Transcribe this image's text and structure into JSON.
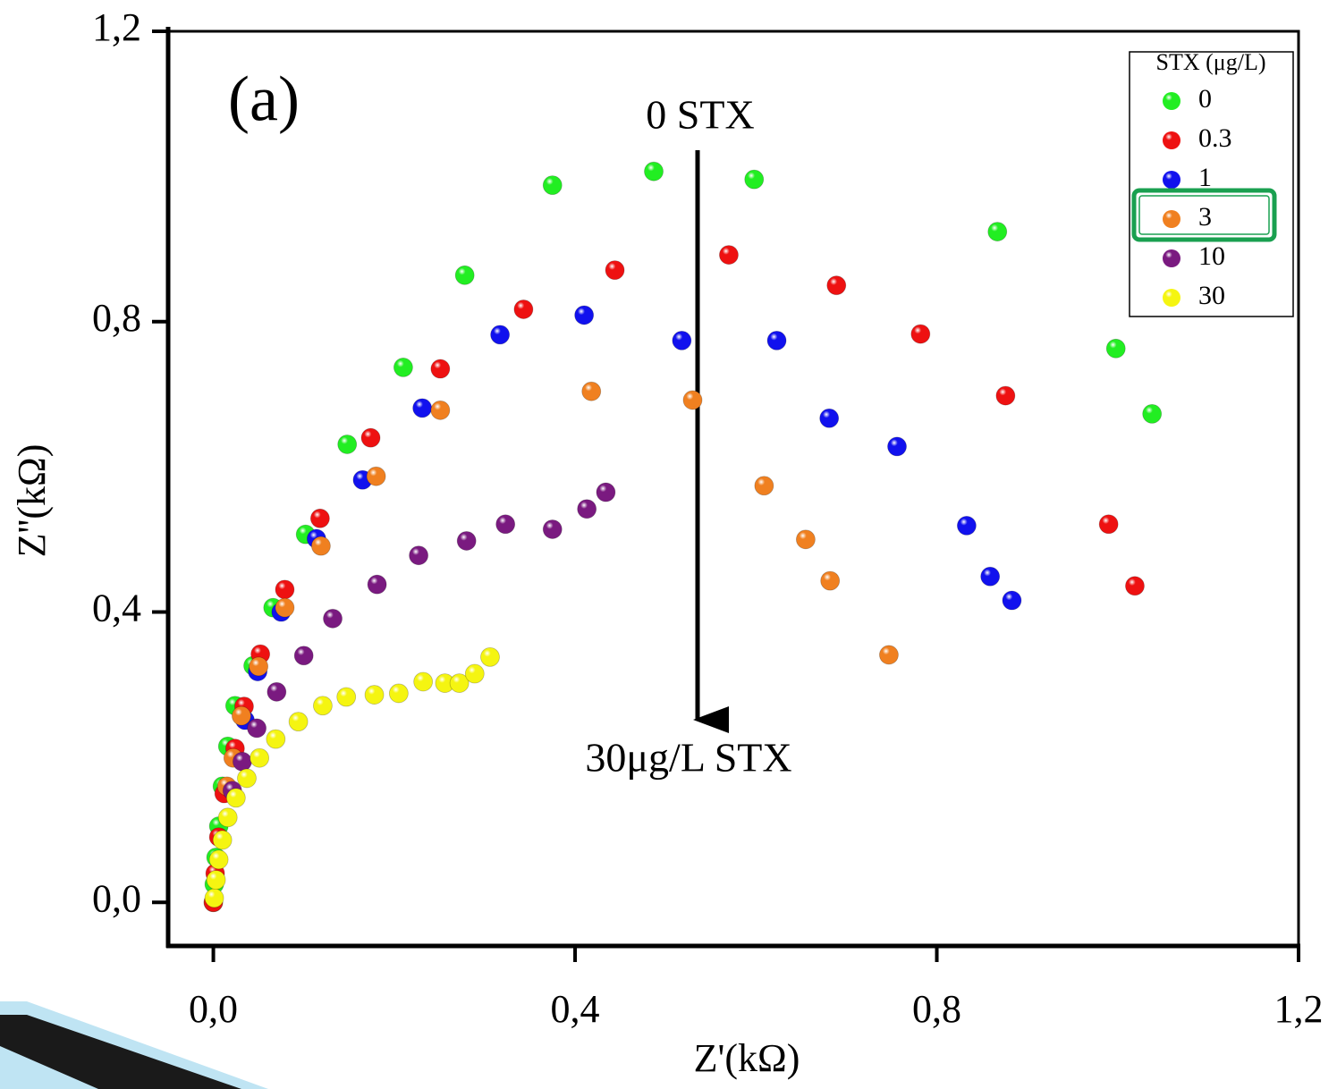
{
  "chart_data": {
    "type": "scatter",
    "annotations": {
      "panel": "(a)",
      "top": "0 STX",
      "bottom": "30μg/L STX"
    },
    "xlabel": "Z'(kΩ)",
    "ylabel": "Z''(kΩ)",
    "xlim": [
      -0.05,
      1.2
    ],
    "ylim": [
      -0.06,
      1.2
    ],
    "xticks": [
      {
        "value": 0,
        "label": "0,0"
      },
      {
        "value": 0.4,
        "label": "0,4"
      },
      {
        "value": 0.8,
        "label": "0,8"
      },
      {
        "value": 1.2,
        "label": "1,2"
      }
    ],
    "yticks": [
      {
        "value": 0,
        "label": "0,0"
      },
      {
        "value": 0.4,
        "label": "0,4"
      },
      {
        "value": 0.8,
        "label": "0,8"
      },
      {
        "value": 1.2,
        "label": "1,2"
      }
    ],
    "legend_title": "STX (μg/L)",
    "legend_position": "upper right",
    "series": [
      {
        "name": "0",
        "color": "#22ee22",
        "x": [
          0,
          0.001,
          0.003,
          0.006,
          0.01,
          0.016,
          0.024,
          0.044,
          0.066,
          0.102,
          0.148,
          0.21,
          0.278,
          0.375,
          0.487,
          0.598,
          0.867,
          0.998,
          1.038
        ],
        "y": [
          0,
          0.025,
          0.062,
          0.105,
          0.16,
          0.215,
          0.271,
          0.326,
          0.406,
          0.507,
          0.631,
          0.737,
          0.864,
          0.988,
          1.007,
          0.996,
          0.924,
          0.763,
          0.673
        ]
      },
      {
        "name": "0.3",
        "color": "#ee1111",
        "x": [
          0,
          0.002,
          0.006,
          0.012,
          0.024,
          0.034,
          0.052,
          0.079,
          0.118,
          0.174,
          0.251,
          0.343,
          0.444,
          0.57,
          0.689,
          0.782,
          0.876,
          0.99,
          1.019
        ],
        "y": [
          0,
          0.04,
          0.09,
          0.15,
          0.212,
          0.27,
          0.342,
          0.431,
          0.529,
          0.64,
          0.735,
          0.817,
          0.871,
          0.892,
          0.85,
          0.783,
          0.698,
          0.521,
          0.436
        ]
      },
      {
        "name": "1",
        "color": "#1111ee",
        "x": [
          0.035,
          0.049,
          0.075,
          0.114,
          0.165,
          0.231,
          0.317,
          0.41,
          0.518,
          0.623,
          0.681,
          0.756,
          0.833,
          0.859,
          0.883
        ],
        "y": [
          0.251,
          0.318,
          0.4,
          0.501,
          0.582,
          0.681,
          0.782,
          0.809,
          0.774,
          0.774,
          0.667,
          0.628,
          0.519,
          0.449,
          0.416
        ]
      },
      {
        "name": "3",
        "color": "#f08020",
        "x": [
          0.015,
          0.022,
          0.031,
          0.05,
          0.079,
          0.119,
          0.18,
          0.251,
          0.418,
          0.53,
          0.609,
          0.655,
          0.682,
          0.747
        ],
        "y": [
          0.16,
          0.199,
          0.257,
          0.325,
          0.406,
          0.491,
          0.587,
          0.678,
          0.704,
          0.692,
          0.574,
          0.5,
          0.443,
          0.341
        ]
      },
      {
        "name": "10",
        "color": "#7a1a80",
        "x": [
          0.021,
          0.032,
          0.048,
          0.07,
          0.1,
          0.132,
          0.181,
          0.227,
          0.28,
          0.323,
          0.375,
          0.413,
          0.434
        ],
        "y": [
          0.154,
          0.194,
          0.24,
          0.29,
          0.34,
          0.391,
          0.438,
          0.478,
          0.498,
          0.521,
          0.514,
          0.542,
          0.565
        ]
      },
      {
        "name": "30",
        "color": "#f5f511",
        "x": [
          0.001,
          0.003,
          0.006,
          0.01,
          0.016,
          0.025,
          0.037,
          0.051,
          0.069,
          0.094,
          0.121,
          0.147,
          0.178,
          0.205,
          0.232,
          0.256,
          0.272,
          0.289,
          0.306
        ],
        "y": [
          0.006,
          0.031,
          0.059,
          0.086,
          0.117,
          0.144,
          0.171,
          0.199,
          0.225,
          0.249,
          0.271,
          0.283,
          0.286,
          0.288,
          0.304,
          0.302,
          0.302,
          0.315,
          0.338
        ]
      }
    ]
  }
}
